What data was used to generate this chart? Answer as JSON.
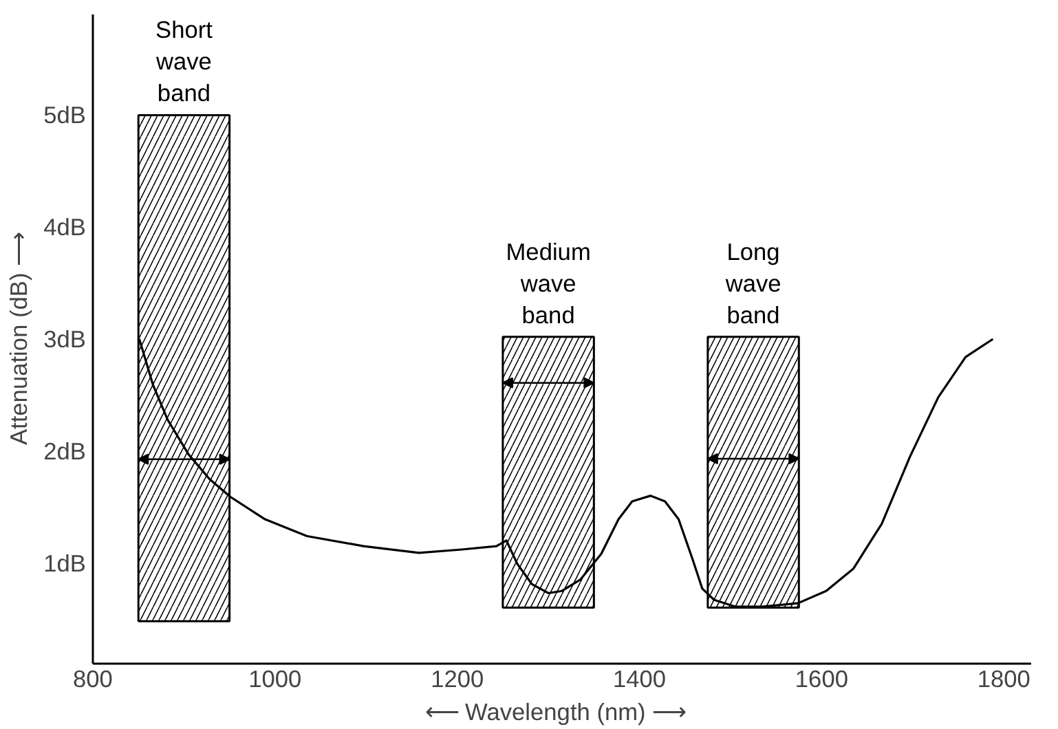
{
  "chart_data": {
    "type": "line",
    "xlabel": "⟵  Wavelength (nm)  ⟶",
    "ylabel": "Attenuation (dB) ⟶",
    "xlim": [
      800,
      1830
    ],
    "ylim": [
      0.1,
      5.9
    ],
    "xticks": [
      800,
      1000,
      1200,
      1400,
      1600,
      1800
    ],
    "yticks": [
      {
        "value": 1,
        "label": "1dB"
      },
      {
        "value": 2,
        "label": "2dB"
      },
      {
        "value": 3,
        "label": "3dB"
      },
      {
        "value": 4,
        "label": "4dB"
      },
      {
        "value": 5,
        "label": "5dB"
      }
    ],
    "grid": false,
    "marker": "none",
    "line_style": "solid",
    "series": [
      {
        "type": "bar",
        "color": "#ffffff",
        "x": [
          900,
          1300,
          1525
        ],
        "base": [
          0.48,
          0.6,
          0.6
        ],
        "values": [
          4.52,
          2.42,
          2.42
        ]
      },
      {
        "color": "#000000",
        "x": [
          851,
          866,
          882,
          905,
          928,
          951,
          989,
          1035,
          1097,
          1158,
          1205,
          1243,
          1254,
          1266,
          1282,
          1300,
          1315,
          1335,
          1358,
          1377,
          1392,
          1412,
          1428,
          1443,
          1458,
          1469,
          1482,
          1505,
          1535,
          1574,
          1605,
          1635,
          1666,
          1697,
          1728,
          1758,
          1788
        ],
        "values": [
          3.0,
          2.59,
          2.28,
          1.97,
          1.75,
          1.59,
          1.39,
          1.24,
          1.15,
          1.09,
          1.12,
          1.15,
          1.2,
          0.99,
          0.81,
          0.73,
          0.75,
          0.85,
          1.08,
          1.39,
          1.55,
          1.6,
          1.55,
          1.39,
          1.04,
          0.77,
          0.67,
          0.61,
          0.61,
          0.64,
          0.75,
          0.95,
          1.35,
          1.95,
          2.48,
          2.84,
          3.0
        ]
      }
    ],
    "annotations": [
      {
        "text": "Short\nwave\nband",
        "x": 900,
        "y": 5.0
      },
      {
        "text": "Medium\nwave\nband",
        "x": 1300,
        "y": 3.02
      },
      {
        "text": "Long\nwave\nband",
        "x": 1525,
        "y": 3.02
      }
    ]
  }
}
